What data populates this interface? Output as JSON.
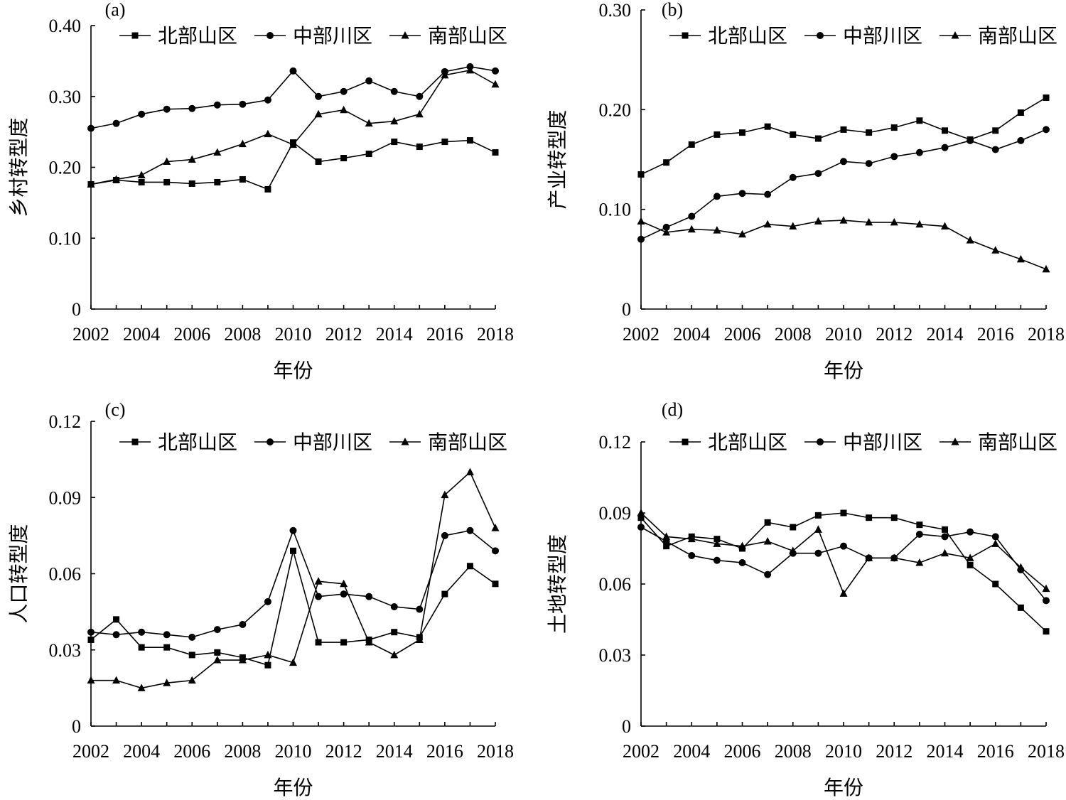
{
  "chart_data": [
    {
      "type": "line",
      "panel_label": "(a)",
      "xlabel": "年份",
      "ylabel": "乡村转型度",
      "x": [
        2002,
        2003,
        2004,
        2005,
        2006,
        2007,
        2008,
        2009,
        2010,
        2011,
        2012,
        2013,
        2014,
        2015,
        2016,
        2017,
        2018
      ],
      "xticks": [
        "2002",
        "2004",
        "2006",
        "2008",
        "2010",
        "2012",
        "2014",
        "2016",
        "2018"
      ],
      "yticks": [
        "0",
        "0.10",
        "0.20",
        "0.30",
        "0.40"
      ],
      "ylim": [
        0,
        0.4
      ],
      "legend_position": "top",
      "series": [
        {
          "name": "北部山区",
          "marker": "square",
          "values": [
            0.176,
            0.182,
            0.179,
            0.179,
            0.177,
            0.179,
            0.183,
            0.169,
            0.235,
            0.208,
            0.213,
            0.219,
            0.236,
            0.229,
            0.236,
            0.238,
            0.221
          ]
        },
        {
          "name": "中部川区",
          "marker": "circle",
          "values": [
            0.255,
            0.262,
            0.275,
            0.282,
            0.283,
            0.288,
            0.289,
            0.295,
            0.336,
            0.3,
            0.307,
            0.322,
            0.307,
            0.3,
            0.335,
            0.342,
            0.336
          ]
        },
        {
          "name": "南部山区",
          "marker": "triangle",
          "values": [
            0.176,
            0.183,
            0.189,
            0.208,
            0.211,
            0.221,
            0.233,
            0.247,
            0.232,
            0.275,
            0.281,
            0.262,
            0.265,
            0.275,
            0.33,
            0.337,
            0.317
          ]
        }
      ]
    },
    {
      "type": "line",
      "panel_label": "(b)",
      "xlabel": "年份",
      "ylabel": "产业转型度",
      "x": [
        2002,
        2003,
        2004,
        2005,
        2006,
        2007,
        2008,
        2009,
        2010,
        2011,
        2012,
        2013,
        2014,
        2015,
        2016,
        2017,
        2018
      ],
      "xticks": [
        "2002",
        "2004",
        "2006",
        "2008",
        "2010",
        "2012",
        "2014",
        "2016",
        "2018"
      ],
      "yticks": [
        "0",
        "0.10",
        "0.20",
        "0.30"
      ],
      "ylim": [
        0,
        0.3
      ],
      "legend_position": "top",
      "series": [
        {
          "name": "北部山区",
          "marker": "square",
          "values": [
            0.135,
            0.147,
            0.165,
            0.175,
            0.177,
            0.183,
            0.175,
            0.171,
            0.18,
            0.177,
            0.182,
            0.189,
            0.179,
            0.17,
            0.179,
            0.197,
            0.212
          ]
        },
        {
          "name": "中部川区",
          "marker": "circle",
          "values": [
            0.07,
            0.082,
            0.093,
            0.113,
            0.116,
            0.115,
            0.132,
            0.136,
            0.148,
            0.146,
            0.153,
            0.157,
            0.162,
            0.169,
            0.16,
            0.169,
            0.18
          ]
        },
        {
          "name": "南部山区",
          "marker": "triangle",
          "values": [
            0.088,
            0.077,
            0.08,
            0.079,
            0.075,
            0.085,
            0.083,
            0.088,
            0.089,
            0.087,
            0.087,
            0.085,
            0.083,
            0.069,
            0.059,
            0.05,
            0.04
          ]
        }
      ]
    },
    {
      "type": "line",
      "panel_label": "(c)",
      "xlabel": "年份",
      "ylabel": "人口转型度",
      "x": [
        2002,
        2003,
        2004,
        2005,
        2006,
        2007,
        2008,
        2009,
        2010,
        2011,
        2012,
        2013,
        2014,
        2015,
        2016,
        2017,
        2018
      ],
      "xticks": [
        "2002",
        "2004",
        "2006",
        "2008",
        "2010",
        "2012",
        "2014",
        "2016",
        "2018"
      ],
      "yticks": [
        "0",
        "0.03",
        "0.06",
        "0.09",
        "0.12"
      ],
      "ylim": [
        0,
        0.12
      ],
      "legend_position": "top",
      "series": [
        {
          "name": "北部山区",
          "marker": "square",
          "values": [
            0.034,
            0.042,
            0.031,
            0.031,
            0.028,
            0.029,
            0.027,
            0.024,
            0.069,
            0.033,
            0.033,
            0.034,
            0.037,
            0.035,
            0.052,
            0.063,
            0.056
          ]
        },
        {
          "name": "中部川区",
          "marker": "circle",
          "values": [
            0.037,
            0.036,
            0.037,
            0.036,
            0.035,
            0.038,
            0.04,
            0.049,
            0.077,
            0.051,
            0.052,
            0.051,
            0.047,
            0.046,
            0.075,
            0.077,
            0.069
          ]
        },
        {
          "name": "南部山区",
          "marker": "triangle",
          "values": [
            0.018,
            0.018,
            0.015,
            0.017,
            0.018,
            0.026,
            0.026,
            0.028,
            0.025,
            0.057,
            0.056,
            0.033,
            0.028,
            0.034,
            0.091,
            0.1,
            0.078
          ]
        }
      ]
    },
    {
      "type": "line",
      "panel_label": "(d)",
      "xlabel": "年份",
      "ylabel": "土地转型度",
      "x": [
        2002,
        2003,
        2004,
        2005,
        2006,
        2007,
        2008,
        2009,
        2010,
        2011,
        2012,
        2013,
        2014,
        2015,
        2016,
        2017,
        2018
      ],
      "xticks": [
        "2002",
        "2004",
        "2006",
        "2008",
        "2010",
        "2012",
        "2014",
        "2016",
        "2018"
      ],
      "yticks": [
        "0",
        "0.03",
        "0.06",
        "0.09",
        "0.12"
      ],
      "ylim": [
        0,
        0.12
      ],
      "legend_position": "top",
      "series": [
        {
          "name": "北部山区",
          "marker": "square",
          "values": [
            0.088,
            0.076,
            0.08,
            0.079,
            0.075,
            0.086,
            0.084,
            0.089,
            0.09,
            0.088,
            0.088,
            0.085,
            0.083,
            0.068,
            0.06,
            0.05,
            0.04
          ]
        },
        {
          "name": "中部川区",
          "marker": "circle",
          "values": [
            0.084,
            0.078,
            0.072,
            0.07,
            0.069,
            0.064,
            0.073,
            0.073,
            0.076,
            0.071,
            0.071,
            0.081,
            0.08,
            0.082,
            0.08,
            0.066,
            0.053
          ]
        },
        {
          "name": "南部山区",
          "marker": "triangle",
          "values": [
            0.09,
            0.08,
            0.079,
            0.077,
            0.076,
            0.078,
            0.074,
            0.083,
            0.056,
            0.071,
            0.071,
            0.069,
            0.073,
            0.071,
            0.077,
            0.067,
            0.058
          ]
        }
      ]
    }
  ]
}
